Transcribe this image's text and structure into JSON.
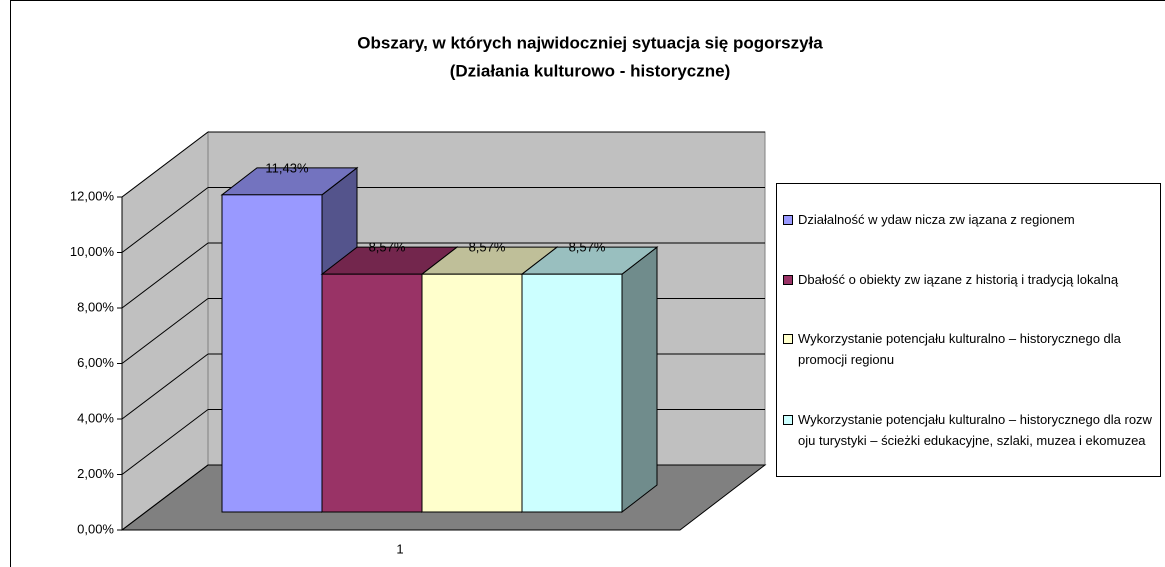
{
  "chart_data": {
    "type": "bar",
    "title": "Obszary, w których najwidoczniej sytuacja się pogorszyła",
    "subtitle": "(Działania kulturowo - historyczne)",
    "categories": [
      "1"
    ],
    "series": [
      {
        "name": "Działalność w ydaw nicza zw iązana z regionem",
        "color": "#9999ff",
        "values": [
          11.43
        ],
        "value_labels": [
          "11,43%"
        ]
      },
      {
        "name": "Dbałość o obiekty zw iązane z historią i tradycją lokalną",
        "color": "#993366",
        "values": [
          8.57
        ],
        "value_labels": [
          "8,57%"
        ]
      },
      {
        "name": "Wykorzystanie potencjału kulturalno – historycznego dla promocji regionu",
        "color": "#ffffcc",
        "values": [
          8.57
        ],
        "value_labels": [
          "8,57%"
        ]
      },
      {
        "name": "Wykorzystanie potencjału kulturalno – historycznego dla rozw oju turystyki – ścieżki edukacyjne, szlaki, muzea i ekomuzea",
        "color": "#ccffff",
        "values": [
          8.57
        ],
        "value_labels": [
          "8,57%"
        ]
      }
    ],
    "ylim": [
      0,
      12
    ],
    "yticks": [
      {
        "value": 0,
        "label": "0,00%"
      },
      {
        "value": 2,
        "label": "2,00%"
      },
      {
        "value": 4,
        "label": "4,00%"
      },
      {
        "value": 6,
        "label": "6,00%"
      },
      {
        "value": 8,
        "label": "8,00%"
      },
      {
        "value": 10,
        "label": "10,00%"
      },
      {
        "value": 12,
        "label": "12,00%"
      }
    ],
    "grid": true,
    "legend": "right"
  }
}
